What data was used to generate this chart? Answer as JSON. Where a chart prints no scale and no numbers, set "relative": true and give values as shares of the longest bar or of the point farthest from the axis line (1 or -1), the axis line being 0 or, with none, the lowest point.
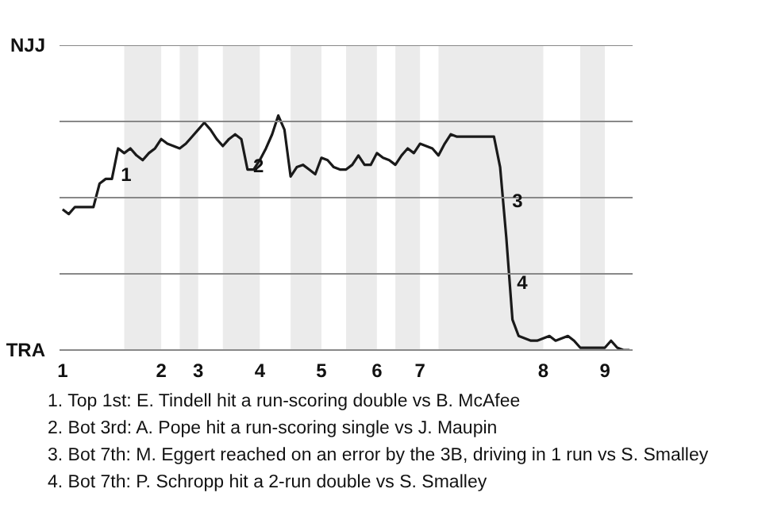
{
  "chart_data": {
    "type": "line",
    "relative": true,
    "categories": [
      "1",
      null,
      null,
      null,
      null,
      null,
      null,
      null,
      null,
      null,
      null,
      null,
      null,
      null,
      null,
      null,
      "2",
      null,
      null,
      null,
      null,
      null,
      "3",
      null,
      null,
      null,
      null,
      null,
      null,
      null,
      null,
      null,
      "4",
      null,
      null,
      null,
      null,
      null,
      null,
      null,
      null,
      null,
      "5",
      null,
      null,
      null,
      null,
      null,
      null,
      null,
      null,
      "6",
      null,
      null,
      null,
      null,
      null,
      null,
      "7",
      null,
      null,
      null,
      null,
      null,
      null,
      null,
      null,
      null,
      null,
      null,
      null,
      null,
      null,
      null,
      null,
      null,
      null,
      null,
      "8",
      null,
      null,
      null,
      null,
      null,
      null,
      null,
      null,
      null,
      "9",
      null,
      null,
      null,
      null
    ],
    "series": [
      {
        "color": "#1a1a1a",
        "values": [
          0.6,
          0.58,
          0.61,
          0.61,
          0.61,
          0.61,
          0.71,
          0.73,
          0.73,
          0.86,
          0.84,
          0.86,
          0.83,
          0.81,
          0.84,
          0.86,
          0.9,
          0.88,
          0.87,
          0.86,
          0.88,
          0.91,
          0.94,
          0.97,
          0.94,
          0.9,
          0.87,
          0.9,
          0.92,
          0.9,
          0.77,
          0.77,
          0.81,
          0.86,
          0.92,
          1,
          0.94,
          0.74,
          0.78,
          0.79,
          0.77,
          0.75,
          0.82,
          0.81,
          0.78,
          0.77,
          0.77,
          0.79,
          0.83,
          0.79,
          0.79,
          0.84,
          0.82,
          0.81,
          0.79,
          0.83,
          0.86,
          0.84,
          0.88,
          0.87,
          0.86,
          0.83,
          0.88,
          0.92,
          0.91,
          0.91,
          0.91,
          0.91,
          0.91,
          0.91,
          0.91,
          0.78,
          0.48,
          0.13,
          0.06,
          0.05,
          0.04,
          0.04,
          0.05,
          0.06,
          0.04,
          0.05,
          0.06,
          0.04,
          0.01,
          0.01,
          0.01,
          0.01,
          0.01,
          0.04,
          0.01,
          0,
          0
        ]
      }
    ],
    "grid": "y",
    "annotations": [
      "NJJ",
      "TRA",
      "1",
      "2",
      "3",
      "4",
      "1. Top 1st: E. Tindell hit a run-scoring double vs B. McAfee",
      "2. Bot 3rd: A. Pope hit a run-scoring single vs J. Maupin",
      "3. Bot 7th: M. Eggert reached on an error by the 3B, driving in 1 run vs S. Smalley",
      "4. Bot 7th: P. Schropp hit a 2-run double vs S. Smalley"
    ]
  }
}
